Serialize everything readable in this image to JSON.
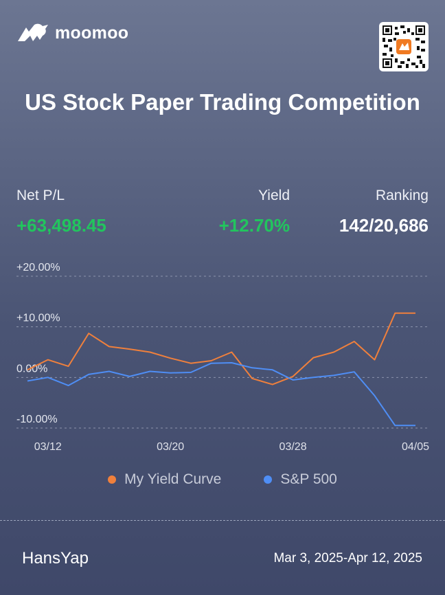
{
  "brand": {
    "name": "moomoo"
  },
  "title": "US Stock Paper Trading Competition",
  "stats": {
    "net_pl": {
      "label": "Net P/L",
      "value": "+63,498.45"
    },
    "yield": {
      "label": "Yield",
      "value": "+12.70%"
    },
    "ranking": {
      "label": "Ranking",
      "value": "142/20,686"
    }
  },
  "colors": {
    "gain": "#22c55e",
    "my_curve": "#f0803c",
    "sp500": "#4f8ef5"
  },
  "chart_data": {
    "type": "line",
    "y_ticks": [
      "+20.00%",
      "+10.00%",
      "0.00%",
      "-10.00%"
    ],
    "y_tick_values": [
      20,
      10,
      0,
      -10
    ],
    "ylim": [
      -10,
      20
    ],
    "x_tick_labels": [
      "03/12",
      "03/20",
      "03/28",
      "04/05"
    ],
    "x_tick_indices": [
      1,
      7,
      13,
      19
    ],
    "x": [
      "03/11",
      "03/12",
      "03/13",
      "03/14",
      "03/17",
      "03/18",
      "03/19",
      "03/20",
      "03/21",
      "03/24",
      "03/25",
      "03/26",
      "03/27",
      "03/28",
      "03/31",
      "04/01",
      "04/02",
      "04/03",
      "04/04",
      "04/05"
    ],
    "series": [
      {
        "name": "My Yield Curve",
        "color": "#f0803c",
        "values": [
          1.5,
          3.5,
          2.2,
          8.7,
          6.1,
          5.6,
          5.0,
          3.8,
          2.8,
          3.3,
          5.0,
          -0.2,
          -1.4,
          0.2,
          3.9,
          5.0,
          7.1,
          3.5,
          12.7,
          12.7
        ]
      },
      {
        "name": "S&P 500",
        "color": "#4f8ef5",
        "values": [
          -0.7,
          0.0,
          -1.6,
          0.6,
          1.2,
          0.2,
          1.2,
          0.9,
          1.0,
          2.8,
          2.9,
          1.9,
          1.5,
          -0.5,
          0.0,
          0.4,
          1.1,
          -3.6,
          -9.5,
          -9.5
        ]
      }
    ]
  },
  "user": {
    "name": "HansYap"
  },
  "period": "Mar 3, 2025-Apr 12, 2025"
}
